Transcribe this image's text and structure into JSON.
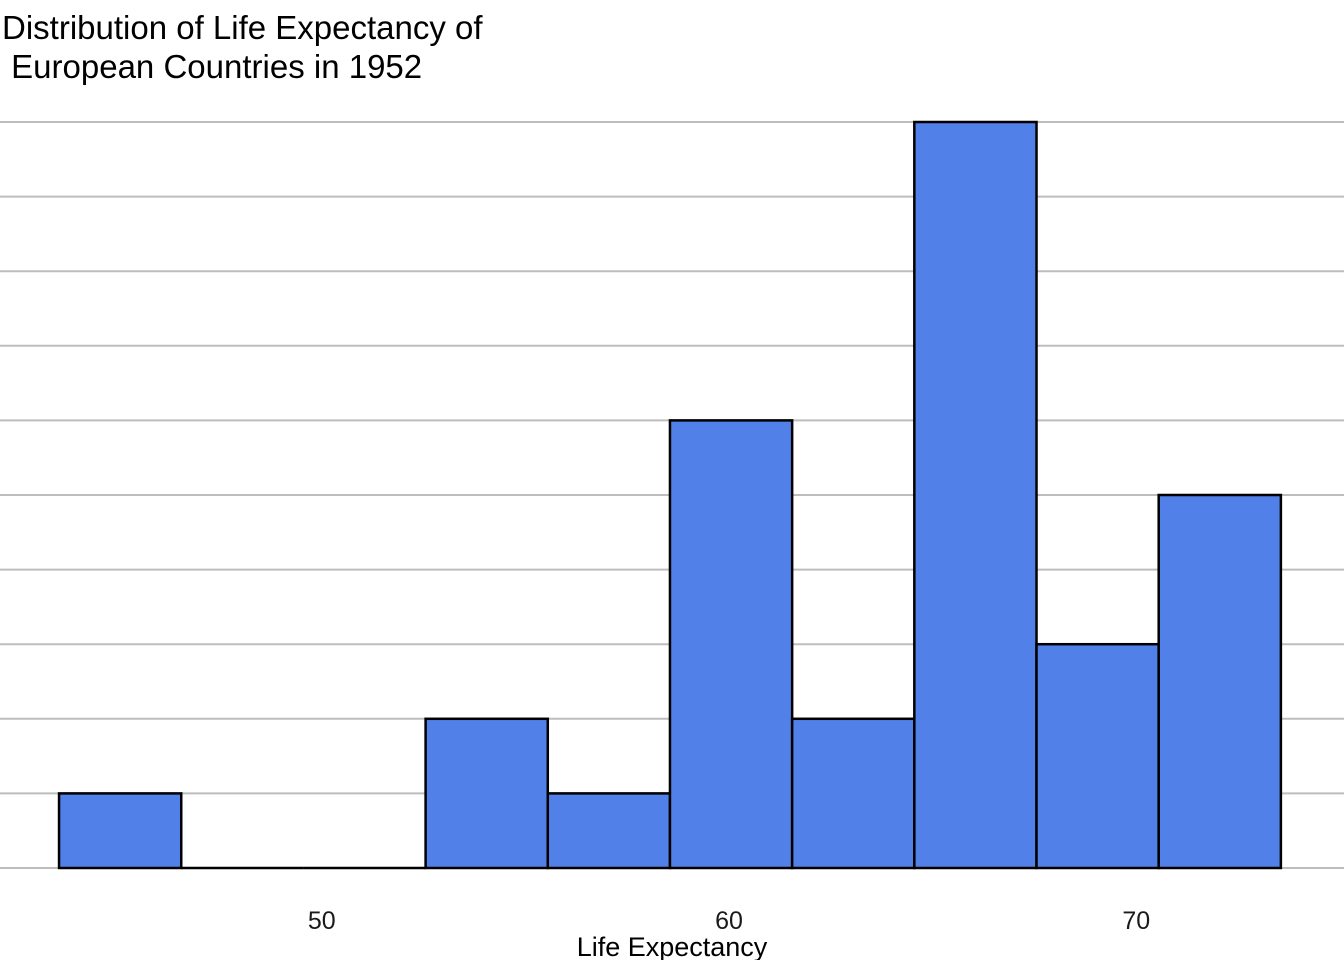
{
  "chart_data": {
    "type": "histogram",
    "title": "Distribution of Life Expectancy of\n European Countries in 1952",
    "xlabel": "Life Expectancy",
    "ylabel": "",
    "bin_width": 3,
    "bins": [
      {
        "x0": 43.55,
        "x1": 46.55,
        "count": 1
      },
      {
        "x0": 46.55,
        "x1": 49.55,
        "count": 0
      },
      {
        "x0": 49.55,
        "x1": 52.55,
        "count": 0
      },
      {
        "x0": 52.55,
        "x1": 55.55,
        "count": 2
      },
      {
        "x0": 55.55,
        "x1": 58.55,
        "count": 1
      },
      {
        "x0": 58.55,
        "x1": 61.55,
        "count": 6
      },
      {
        "x0": 61.55,
        "x1": 64.55,
        "count": 2
      },
      {
        "x0": 64.55,
        "x1": 67.55,
        "count": 10
      },
      {
        "x0": 67.55,
        "x1": 70.55,
        "count": 3
      },
      {
        "x0": 70.55,
        "x1": 73.55,
        "count": 5
      }
    ],
    "x_ticks": [
      50,
      60,
      70
    ],
    "x_tick_labels": [
      "50",
      "60",
      "70"
    ],
    "y_gridlines": [
      0,
      1,
      2,
      3,
      4,
      5,
      6,
      7,
      8,
      9,
      10
    ],
    "xlim": [
      42.1,
      75.1
    ],
    "ylim": [
      0,
      10
    ],
    "grid": "horizontal",
    "legend": "none",
    "colors": {
      "bar_fill": "#5181e8",
      "bar_stroke": "#000000",
      "grid": "#bdbdbd"
    }
  }
}
